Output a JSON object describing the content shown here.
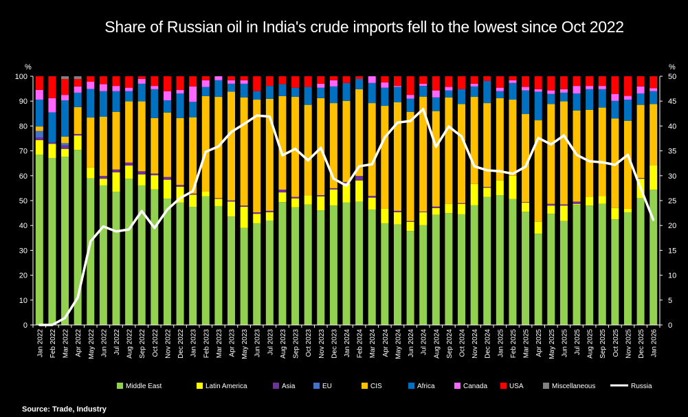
{
  "chart_data": {
    "type": "bar",
    "stacked": true,
    "title": "Share of Russian oil in India's crude imports fell to the lowest since Oct 2022",
    "source": "Source: Trade, Industry",
    "ylabel_left": "%",
    "ylabel_right": "%",
    "ylim_left": [
      0,
      100
    ],
    "ylim_right": [
      0,
      50
    ],
    "yticks_left": [
      0,
      10,
      20,
      30,
      40,
      50,
      60,
      70,
      80,
      90,
      100
    ],
    "yticks_right": [
      0,
      5,
      10,
      15,
      20,
      25,
      30,
      35,
      40,
      45,
      50
    ],
    "grid": false,
    "legend_position": "bottom",
    "categories": [
      "Jan 2022",
      "Feb 2022",
      "Mar 2022",
      "Apr 2022",
      "May 2022",
      "Jun 2022",
      "Jul 2022",
      "Aug 2022",
      "Sep 2022",
      "Oct 2022",
      "Nov 2022",
      "Dec 2022",
      "Jan 2023",
      "Feb 2023",
      "Mar 2023",
      "Apr 2023",
      "May 2023",
      "Jun 2023",
      "Jul 2023",
      "Aug 2023",
      "Sep 2023",
      "Oct 2023",
      "Nov 2023",
      "Dec 2023",
      "Jan 2024",
      "Feb 2024",
      "Mar 2024",
      "Apr 2024",
      "May 2024",
      "Jun 2024",
      "Jul 2024",
      "Aug 2024",
      "Sep 2024",
      "Oct 2024",
      "Nov 2024",
      "Dec 2024",
      "Jan 2025",
      "Feb 2025",
      "Mar 2025",
      "Apr 2025",
      "May 2025",
      "Jun 2025",
      "Jul 2025",
      "Aug 2025",
      "Sep 2025",
      "Oct 2025",
      "Nov 2025",
      "Dec 2025",
      "Jan 2026"
    ],
    "series": [
      {
        "name": "Middle East",
        "color": "#92d050",
        "axis": "left",
        "values": [
          68.5,
          67.1,
          67.6,
          70.4,
          59,
          56.1,
          53.6,
          58.8,
          56.1,
          54.5,
          50.8,
          49.2,
          47.5,
          51.7,
          47.8,
          43.6,
          39,
          40.9,
          42,
          49.4,
          47.3,
          48.4,
          46.1,
          48,
          49.2,
          49.6,
          46.4,
          40.9,
          40.4,
          37.8,
          40.1,
          44.3,
          45,
          44.5,
          48.1,
          51.5,
          52.2,
          50.6,
          45.5,
          36.7,
          44.7,
          41.8,
          48.3,
          48,
          48.7,
          42.5,
          45.3,
          51,
          54.4
        ]
      },
      {
        "name": "Latin America",
        "color": "#ffff00",
        "axis": "left",
        "values": [
          5.8,
          5.7,
          3.2,
          5.8,
          4.3,
          2.7,
          7.8,
          5.3,
          4.4,
          5.7,
          7.6,
          6.4,
          4.9,
          1.9,
          2.9,
          6,
          8.5,
          3.8,
          3.3,
          3.9,
          3.6,
          3.7,
          5.6,
          6.5,
          7.8,
          8.5,
          4.8,
          5.8,
          4.9,
          3.7,
          5.2,
          2.7,
          3.7,
          4.2,
          8.6,
          3.7,
          5.9,
          9.4,
          3.7,
          4.8,
          3.3,
          6.2,
          0.4,
          3.5,
          3.2,
          4.5,
          1.4,
          7.8,
          9.8
        ]
      },
      {
        "name": "Asia",
        "color": "#7030a0",
        "axis": "left",
        "values": [
          1.1,
          0.6,
          1.4,
          0.6,
          0,
          1.1,
          1.1,
          1.2,
          1.3,
          0.7,
          1.1,
          0.7,
          0.4,
          0,
          0.3,
          0.5,
          0.5,
          0.6,
          0.6,
          1.1,
          0.6,
          0,
          0.5,
          0.5,
          0.5,
          1.8,
          0.7,
          0,
          0.6,
          0.3,
          0.3,
          0.6,
          0,
          0.3,
          0,
          0.3,
          0,
          0,
          0.2,
          0,
          0.7,
          0.5,
          0.9,
          0,
          0,
          0,
          0,
          0.3,
          0
        ]
      },
      {
        "name": "EU",
        "color": "#4472c4",
        "axis": "left",
        "values": [
          2.6,
          0,
          0.9,
          0,
          0,
          0,
          0,
          0,
          0,
          0,
          0,
          0,
          0,
          0,
          0,
          0,
          0,
          0,
          0,
          0,
          0,
          0,
          0,
          0,
          0,
          0,
          0,
          0,
          0,
          0,
          0,
          0,
          0,
          0,
          0,
          0,
          0,
          0,
          0,
          0,
          0,
          0,
          0,
          0,
          0,
          0,
          0,
          0,
          0
        ]
      },
      {
        "name": "CIS",
        "color": "#ffc000",
        "axis": "left",
        "values": [
          1.8,
          0,
          2.6,
          10.8,
          20.1,
          23.8,
          23.2,
          24.6,
          28.1,
          22.3,
          25.9,
          26.9,
          30.7,
          38.4,
          40.7,
          43.7,
          43.5,
          45.3,
          45,
          37.6,
          40.2,
          36.4,
          39,
          34.2,
          32.6,
          34.9,
          37.3,
          41.4,
          43.6,
          43.9,
          46.2,
          38.4,
          42.8,
          39.8,
          35,
          33.7,
          33.1,
          30.6,
          35.4,
          40.8,
          40.1,
          41.4,
          36.6,
          35,
          35.5,
          36,
          35.4,
          29.4,
          24.6
        ]
      },
      {
        "name": "Africa",
        "color": "#0070c0",
        "axis": "left",
        "values": [
          10.8,
          12.1,
          14.6,
          5.8,
          11.5,
          10.3,
          8.3,
          4.1,
          7.1,
          11.6,
          4.9,
          9.9,
          6.2,
          3.7,
          6.7,
          3.2,
          5.5,
          3.4,
          5.2,
          4.8,
          3.7,
          7.2,
          4.2,
          6.7,
          7.2,
          4.1,
          8.1,
          7.3,
          6.2,
          5.3,
          4.3,
          5.5,
          2.8,
          6,
          4.2,
          8.9,
          2.8,
          6.7,
          9.5,
          11.5,
          4.1,
          3.5,
          6.9,
          8.3,
          7.4,
          7.1,
          8.5,
          4.6,
          5.2
        ]
      },
      {
        "name": "Canada",
        "color": "#ff66ff",
        "axis": "left",
        "values": [
          3.9,
          5.7,
          2.2,
          2.5,
          2.9,
          2.8,
          2.1,
          1.4,
          1.9,
          1.3,
          3.7,
          1.4,
          6.2,
          2.7,
          1.6,
          1.4,
          1.4,
          0,
          0,
          0,
          0,
          0,
          1.6,
          2.5,
          0,
          0,
          2.7,
          2.1,
          0.4,
          1.5,
          0.9,
          2.8,
          1.4,
          0,
          1.1,
          0,
          1.4,
          1.1,
          1.4,
          1,
          1.4,
          1.4,
          3,
          1.3,
          1.3,
          2.8,
          1.5,
          2.8,
          1.2
        ]
      },
      {
        "name": "USA",
        "color": "#ff0000",
        "axis": "left",
        "values": [
          5.5,
          8.8,
          6.4,
          3,
          2.2,
          3.2,
          3.9,
          4.6,
          1.1,
          3.9,
          6,
          5.5,
          4.1,
          1.6,
          0,
          1.6,
          1.6,
          6,
          3.9,
          3.2,
          4.6,
          4.3,
          3,
          1.6,
          2.7,
          1.1,
          0,
          2.5,
          3.9,
          7.5,
          3,
          5.7,
          4.3,
          5.2,
          3,
          1.9,
          4.6,
          1.6,
          4.3,
          5.2,
          5.7,
          5.2,
          3.9,
          3.9,
          3.9,
          7.1,
          7.9,
          4.1,
          4.8
        ]
      },
      {
        "name": "Miscellaneous",
        "color": "#808080",
        "axis": "left",
        "values": [
          0,
          0,
          1.1,
          1.1,
          0,
          0,
          0,
          0,
          0,
          0,
          0,
          0,
          0,
          0,
          0,
          0,
          0,
          0,
          0,
          0,
          0,
          0,
          0,
          0,
          0,
          0,
          0,
          0,
          0,
          0,
          0,
          0,
          0,
          0,
          0,
          0,
          0,
          0,
          0,
          0,
          0,
          0,
          0,
          0,
          0,
          0,
          0,
          0,
          0
        ]
      }
    ],
    "line_series": {
      "name": "Russia",
      "color": "#ffffff",
      "axis": "right",
      "values": [
        0,
        0,
        1.4,
        5.5,
        16.8,
        19.8,
        18.8,
        19.2,
        22.9,
        19.5,
        23.2,
        25.5,
        26.9,
        34.8,
        35.9,
        38.8,
        40.4,
        42.1,
        41.9,
        34.1,
        35.4,
        33.1,
        35.6,
        29.4,
        28.0,
        31.9,
        32.3,
        37.7,
        40.7,
        41.0,
        43.4,
        35.8,
        39.9,
        37.9,
        31.9,
        31.1,
        30.9,
        30.4,
        31.8,
        37.6,
        36.3,
        38.1,
        34.2,
        32.9,
        32.7,
        32.2,
        34.2,
        27.5,
        21.1
      ]
    }
  }
}
